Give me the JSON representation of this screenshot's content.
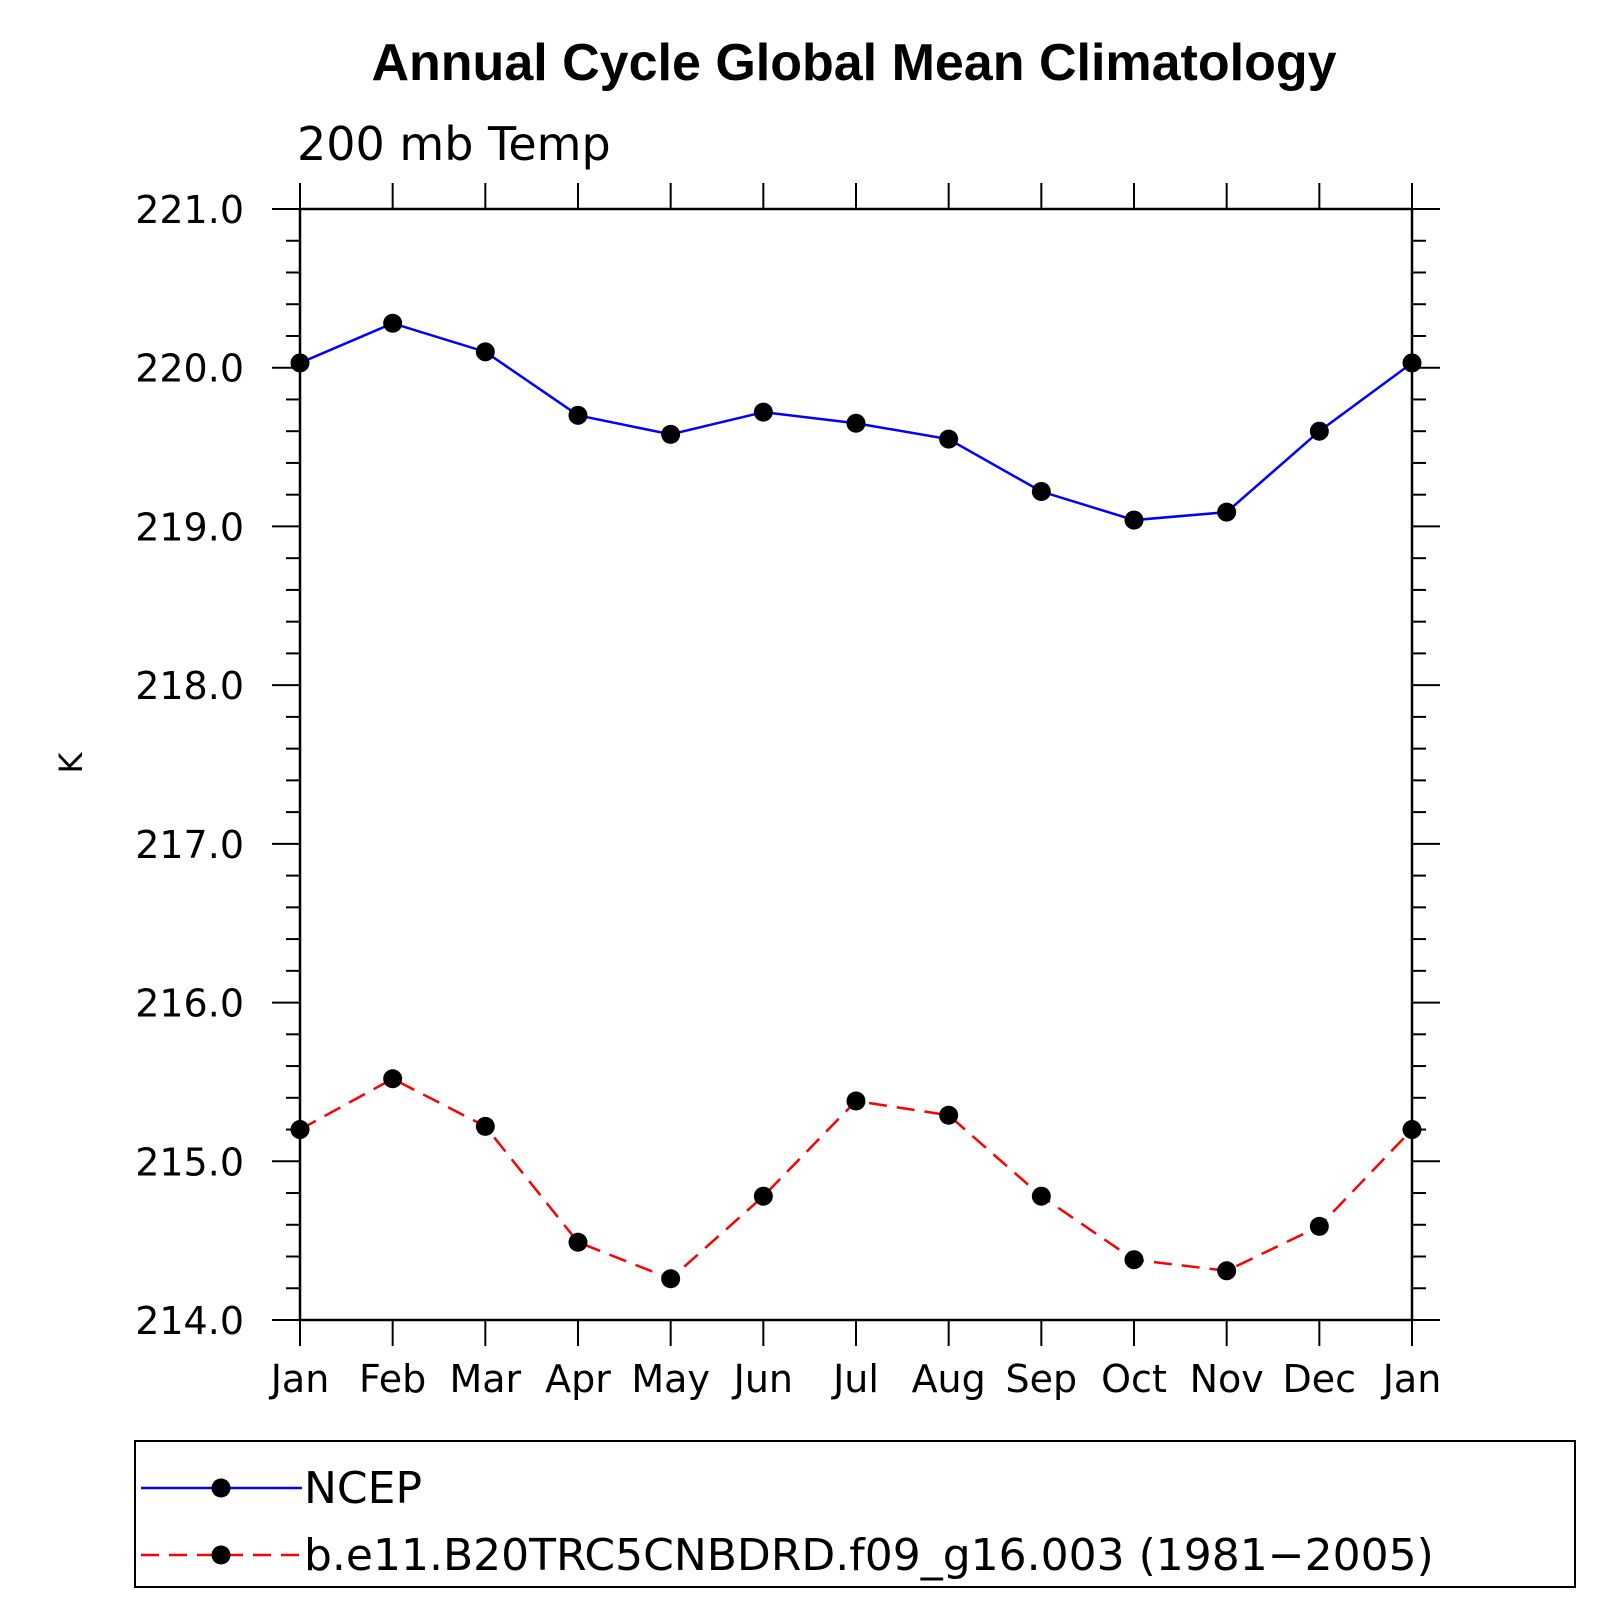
{
  "chart_data": {
    "type": "line",
    "title": "Annual Cycle Global Mean Climatology",
    "subtitle": "200 mb Temp",
    "xlabel": "",
    "ylabel": "K",
    "categories": [
      "Jan",
      "Feb",
      "Mar",
      "Apr",
      "May",
      "Jun",
      "Jul",
      "Aug",
      "Sep",
      "Oct",
      "Nov",
      "Dec",
      "Jan"
    ],
    "ylim": [
      214.0,
      221.0
    ],
    "yticks": [
      "214.0",
      "215.0",
      "216.0",
      "217.0",
      "218.0",
      "219.0",
      "220.0",
      "221.0"
    ],
    "y_minor_step": 0.2,
    "legend_position": "bottom",
    "series": [
      {
        "name": "NCEP",
        "color": "#0000ff",
        "line_style": "solid",
        "marker": "filled-circle",
        "values": [
          220.03,
          220.28,
          220.1,
          219.7,
          219.58,
          219.72,
          219.65,
          219.55,
          219.22,
          219.04,
          219.09,
          219.6,
          220.03
        ]
      },
      {
        "name": "b.e11.B20TRC5CNBDRD.f09_g16.003 (1981−2005)",
        "color": "#ff0000",
        "line_style": "dashed",
        "marker": "filled-circle",
        "values": [
          215.2,
          215.52,
          215.22,
          214.49,
          214.26,
          214.78,
          215.38,
          215.29,
          214.78,
          214.38,
          214.31,
          214.59,
          215.2
        ]
      }
    ]
  }
}
